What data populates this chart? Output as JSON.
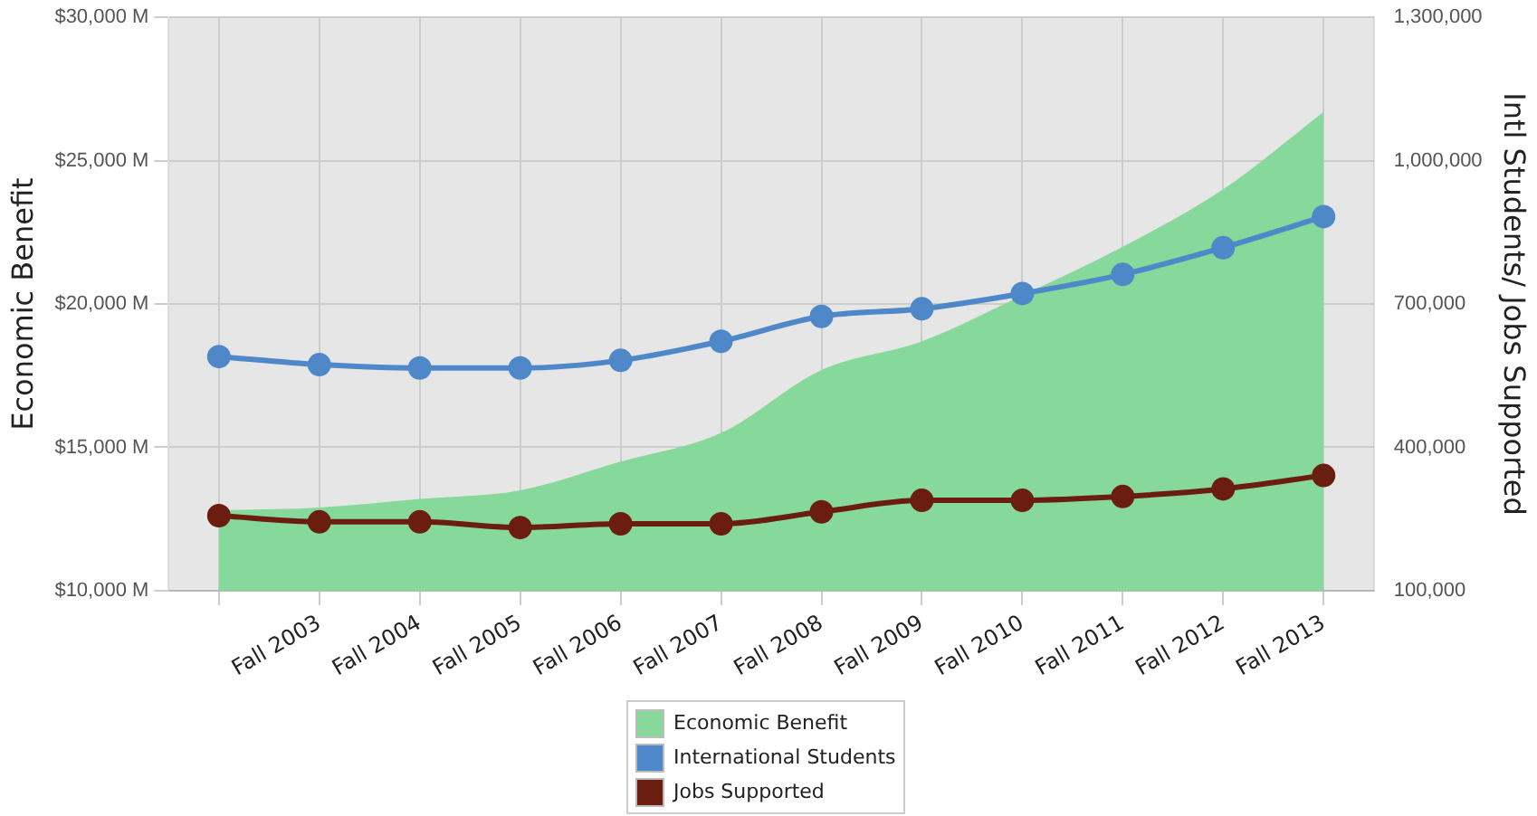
{
  "chart_data": {
    "type": "line",
    "xlabel": null,
    "ylabel": "Economic Benefit",
    "y2label": "Intl Students/ Jobs Supported",
    "categories": [
      null,
      "Fall 2003",
      "Fall 2004",
      "Fall 2005",
      "Fall 2006",
      "Fall 2007",
      "Fall 2008",
      "Fall 2009",
      "Fall 2010",
      "Fall 2011",
      "Fall 2012",
      "Fall 2013"
    ],
    "series": [
      {
        "name": "Economic Benefit",
        "type": "area",
        "marker": "none",
        "color": "#86d99b",
        "values": [
          12800,
          12900,
          13200,
          13500,
          14500,
          15500,
          17700,
          18700,
          20300,
          22000,
          24000,
          26700
        ]
      },
      {
        "name": "International Students",
        "type": "line",
        "axis": "y2",
        "color": "#4f88c8",
        "values": [
          590000,
          573000,
          566000,
          566000,
          582000,
          622000,
          674000,
          690000,
          722000,
          762000,
          818000,
          883000
        ]
      },
      {
        "name": "Jobs Supported",
        "type": "line",
        "axis": "y2",
        "color": "#6b1e10",
        "values": [
          257000,
          244000,
          244000,
          232000,
          240000,
          240000,
          265000,
          289000,
          289000,
          297000,
          313000,
          341000
        ]
      }
    ],
    "ylim": [
      10000,
      30000
    ],
    "yticks": [
      {
        "value": 10000,
        "label": "$10,000 M"
      },
      {
        "value": 15000,
        "label": "$15,000 M"
      },
      {
        "value": 20000,
        "label": "$20,000 M"
      },
      {
        "value": 25000,
        "label": "$25,000 M"
      },
      {
        "value": 30000,
        "label": "$30,000 M"
      }
    ],
    "y2lim": [
      100000,
      1300000
    ],
    "y2ticks": [
      {
        "value": 100000,
        "label": "100,000"
      },
      {
        "value": 400000,
        "label": "400,000"
      },
      {
        "value": 700000,
        "label": "700,000"
      },
      {
        "value": 1000000,
        "label": "1,000,000"
      },
      {
        "value": 1300000,
        "label": "1,300,000"
      }
    ],
    "grid": true,
    "legend": "bottom",
    "marker": "circle"
  }
}
